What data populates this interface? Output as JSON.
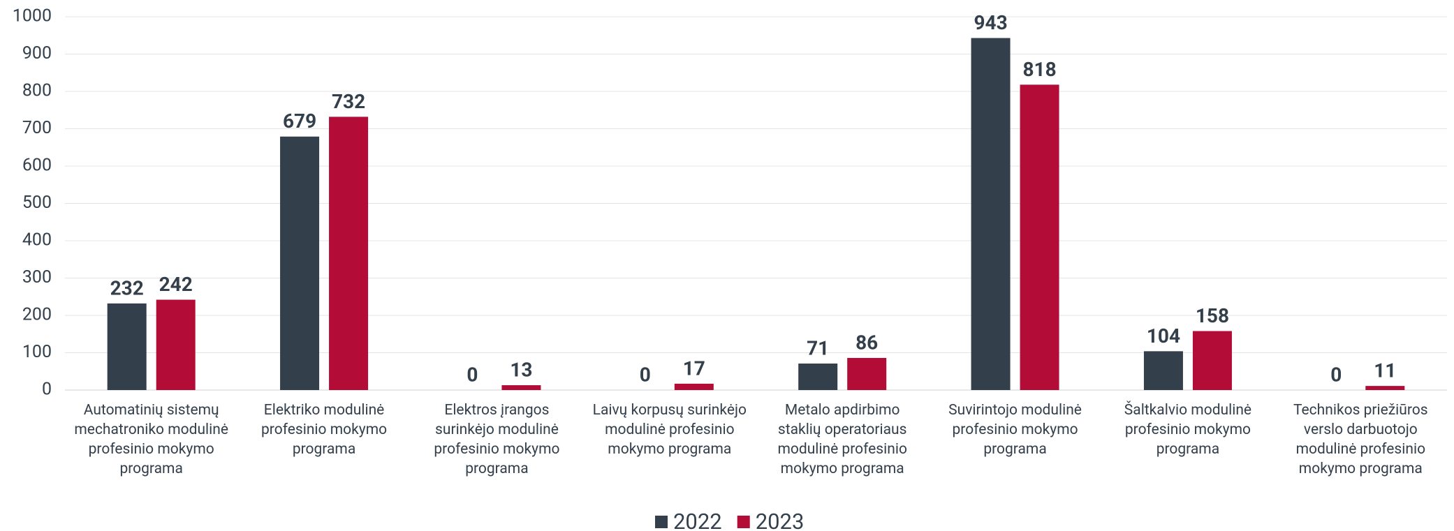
{
  "chart_data": {
    "type": "bar",
    "categories": [
      "Automatinių sistemų\nmechatroniko modulinė\nprofesinio mokymo\nprograma",
      "Elektriko modulinė\nprofesinio mokymo\nprograma",
      "Elektros įrangos\nsurinkėjo modulinė\nprofesinio mokymo\nprograma",
      "Laivų korpusų surinkėjo\nmodulinė profesinio\nmokymo programa",
      "Metalo apdirbimo\nstaklių operatoriaus\nmodulinė profesinio\nmokymo programa",
      "Suvirintojo modulinė\nprofesinio mokymo\nprograma",
      "Šaltkalvio modulinė\nprofesinio mokymo\nprograma",
      "Technikos priežiūros\nverslo darbuotojo\nmodulinė profesinio\nmokymo programa"
    ],
    "series": [
      {
        "name": "2022",
        "color": "#333f4b",
        "values": [
          232,
          679,
          0,
          0,
          71,
          943,
          104,
          0
        ]
      },
      {
        "name": "2023",
        "color": "#b30d37",
        "values": [
          242,
          732,
          13,
          17,
          86,
          818,
          158,
          11
        ]
      }
    ],
    "ylim": [
      0,
      1000
    ],
    "yticks": [
      0,
      100,
      200,
      300,
      400,
      500,
      600,
      700,
      800,
      900,
      1000
    ],
    "grid": true,
    "legend": "bottom"
  }
}
